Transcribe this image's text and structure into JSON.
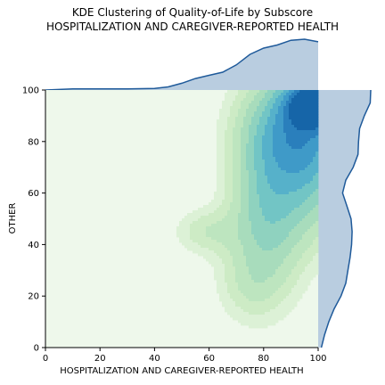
{
  "chart_data": {
    "type": "kde-joint",
    "title": "KDE Clustering of Quality-of-Life by Subscore",
    "subtitle": "HOSPITALIZATION AND CAREGIVER-REPORTED HEALTH",
    "xlabel": "HOSPITALIZATION AND CAREGIVER-REPORTED HEALTH",
    "ylabel": "OTHER",
    "xlim": [
      0,
      100
    ],
    "ylim": [
      0,
      100
    ],
    "x_ticks": [
      0,
      20,
      40,
      60,
      80,
      100
    ],
    "y_ticks": [
      0,
      20,
      40,
      60,
      80,
      100
    ],
    "x_tick_labels": [
      "0",
      "20",
      "40",
      "60",
      "80",
      "100"
    ],
    "y_tick_labels": [
      "0",
      "20",
      "40",
      "60",
      "80",
      "100"
    ],
    "grid": false,
    "joint_colormap": "GnBu",
    "marginal_color": "#1f5a9a",
    "marginal_fill": "#b9cde0",
    "background_fill": "#eef8eb",
    "marginal_x_density": {
      "x": [
        0,
        10,
        20,
        30,
        40,
        45,
        50,
        55,
        60,
        65,
        70,
        75,
        80,
        85,
        90,
        95,
        100
      ],
      "density": [
        0.0,
        0.02,
        0.02,
        0.02,
        0.03,
        0.06,
        0.13,
        0.22,
        0.28,
        0.34,
        0.48,
        0.68,
        0.8,
        0.86,
        0.95,
        0.97,
        0.92
      ]
    },
    "marginal_y_density": {
      "y": [
        0,
        5,
        10,
        15,
        20,
        25,
        30,
        35,
        40,
        45,
        50,
        55,
        60,
        65,
        70,
        75,
        80,
        85,
        90,
        95,
        100
      ],
      "density": [
        0.06,
        0.12,
        0.2,
        0.3,
        0.43,
        0.52,
        0.56,
        0.6,
        0.63,
        0.64,
        0.62,
        0.54,
        0.46,
        0.52,
        0.66,
        0.75,
        0.76,
        0.78,
        0.87,
        0.98,
        0.99
      ]
    },
    "joint_density_blobs": [
      {
        "x": 100,
        "y": 95,
        "sx": 7,
        "sy": 6,
        "w": 1.0
      },
      {
        "x": 92,
        "y": 85,
        "sx": 12,
        "sy": 14,
        "w": 0.55
      },
      {
        "x": 82,
        "y": 55,
        "sx": 9,
        "sy": 20,
        "w": 0.35
      },
      {
        "x": 98,
        "y": 65,
        "sx": 8,
        "sy": 16,
        "w": 0.22
      },
      {
        "x": 60,
        "y": 45,
        "sx": 8,
        "sy": 6,
        "w": 0.12
      },
      {
        "x": 75,
        "y": 25,
        "sx": 8,
        "sy": 10,
        "w": 0.1
      }
    ],
    "joint_levels": [
      0.04,
      0.08,
      0.13,
      0.2,
      0.28,
      0.37,
      0.47,
      0.58,
      0.7,
      0.82
    ]
  }
}
